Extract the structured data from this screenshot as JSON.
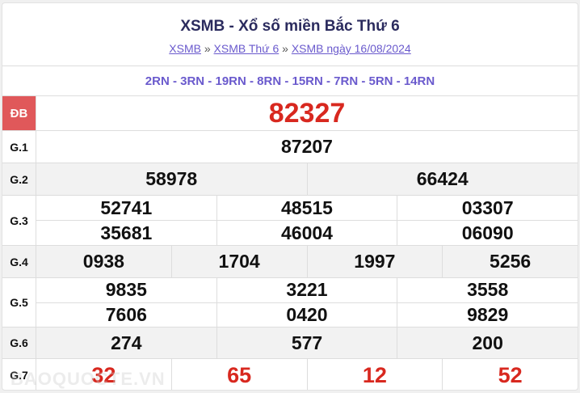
{
  "header": {
    "title": "XSMB - Xổ số miền Bắc Thứ 6",
    "breadcrumb": [
      "XSMB",
      "XSMB Thứ 6",
      "XSMB ngày 16/08/2024"
    ],
    "separator": "»"
  },
  "rn_codes": "2RN - 3RN - 19RN - 8RN - 15RN - 7RN - 5RN - 14RN",
  "prizes": {
    "db": {
      "label": "ĐB",
      "numbers": [
        "82327"
      ]
    },
    "g1": {
      "label": "G.1",
      "numbers": [
        "87207"
      ]
    },
    "g2": {
      "label": "G.2",
      "numbers": [
        "58978",
        "66424"
      ]
    },
    "g3": {
      "label": "G.3",
      "numbers": [
        "52741",
        "48515",
        "03307",
        "35681",
        "46004",
        "06090"
      ]
    },
    "g4": {
      "label": "G.4",
      "numbers": [
        "0938",
        "1704",
        "1997",
        "5256"
      ]
    },
    "g5": {
      "label": "G.5",
      "numbers": [
        "9835",
        "3221",
        "3558",
        "7606",
        "0420",
        "9829"
      ]
    },
    "g6": {
      "label": "G.6",
      "numbers": [
        "274",
        "577",
        "200"
      ]
    },
    "g7": {
      "label": "G.7",
      "numbers": [
        "32",
        "65",
        "12",
        "52"
      ]
    }
  },
  "watermark": "BAOQUOCTE.VN",
  "colors": {
    "accent": "#6a5acd",
    "special": "#d8281f",
    "db_label_bg": "#e0585a"
  }
}
